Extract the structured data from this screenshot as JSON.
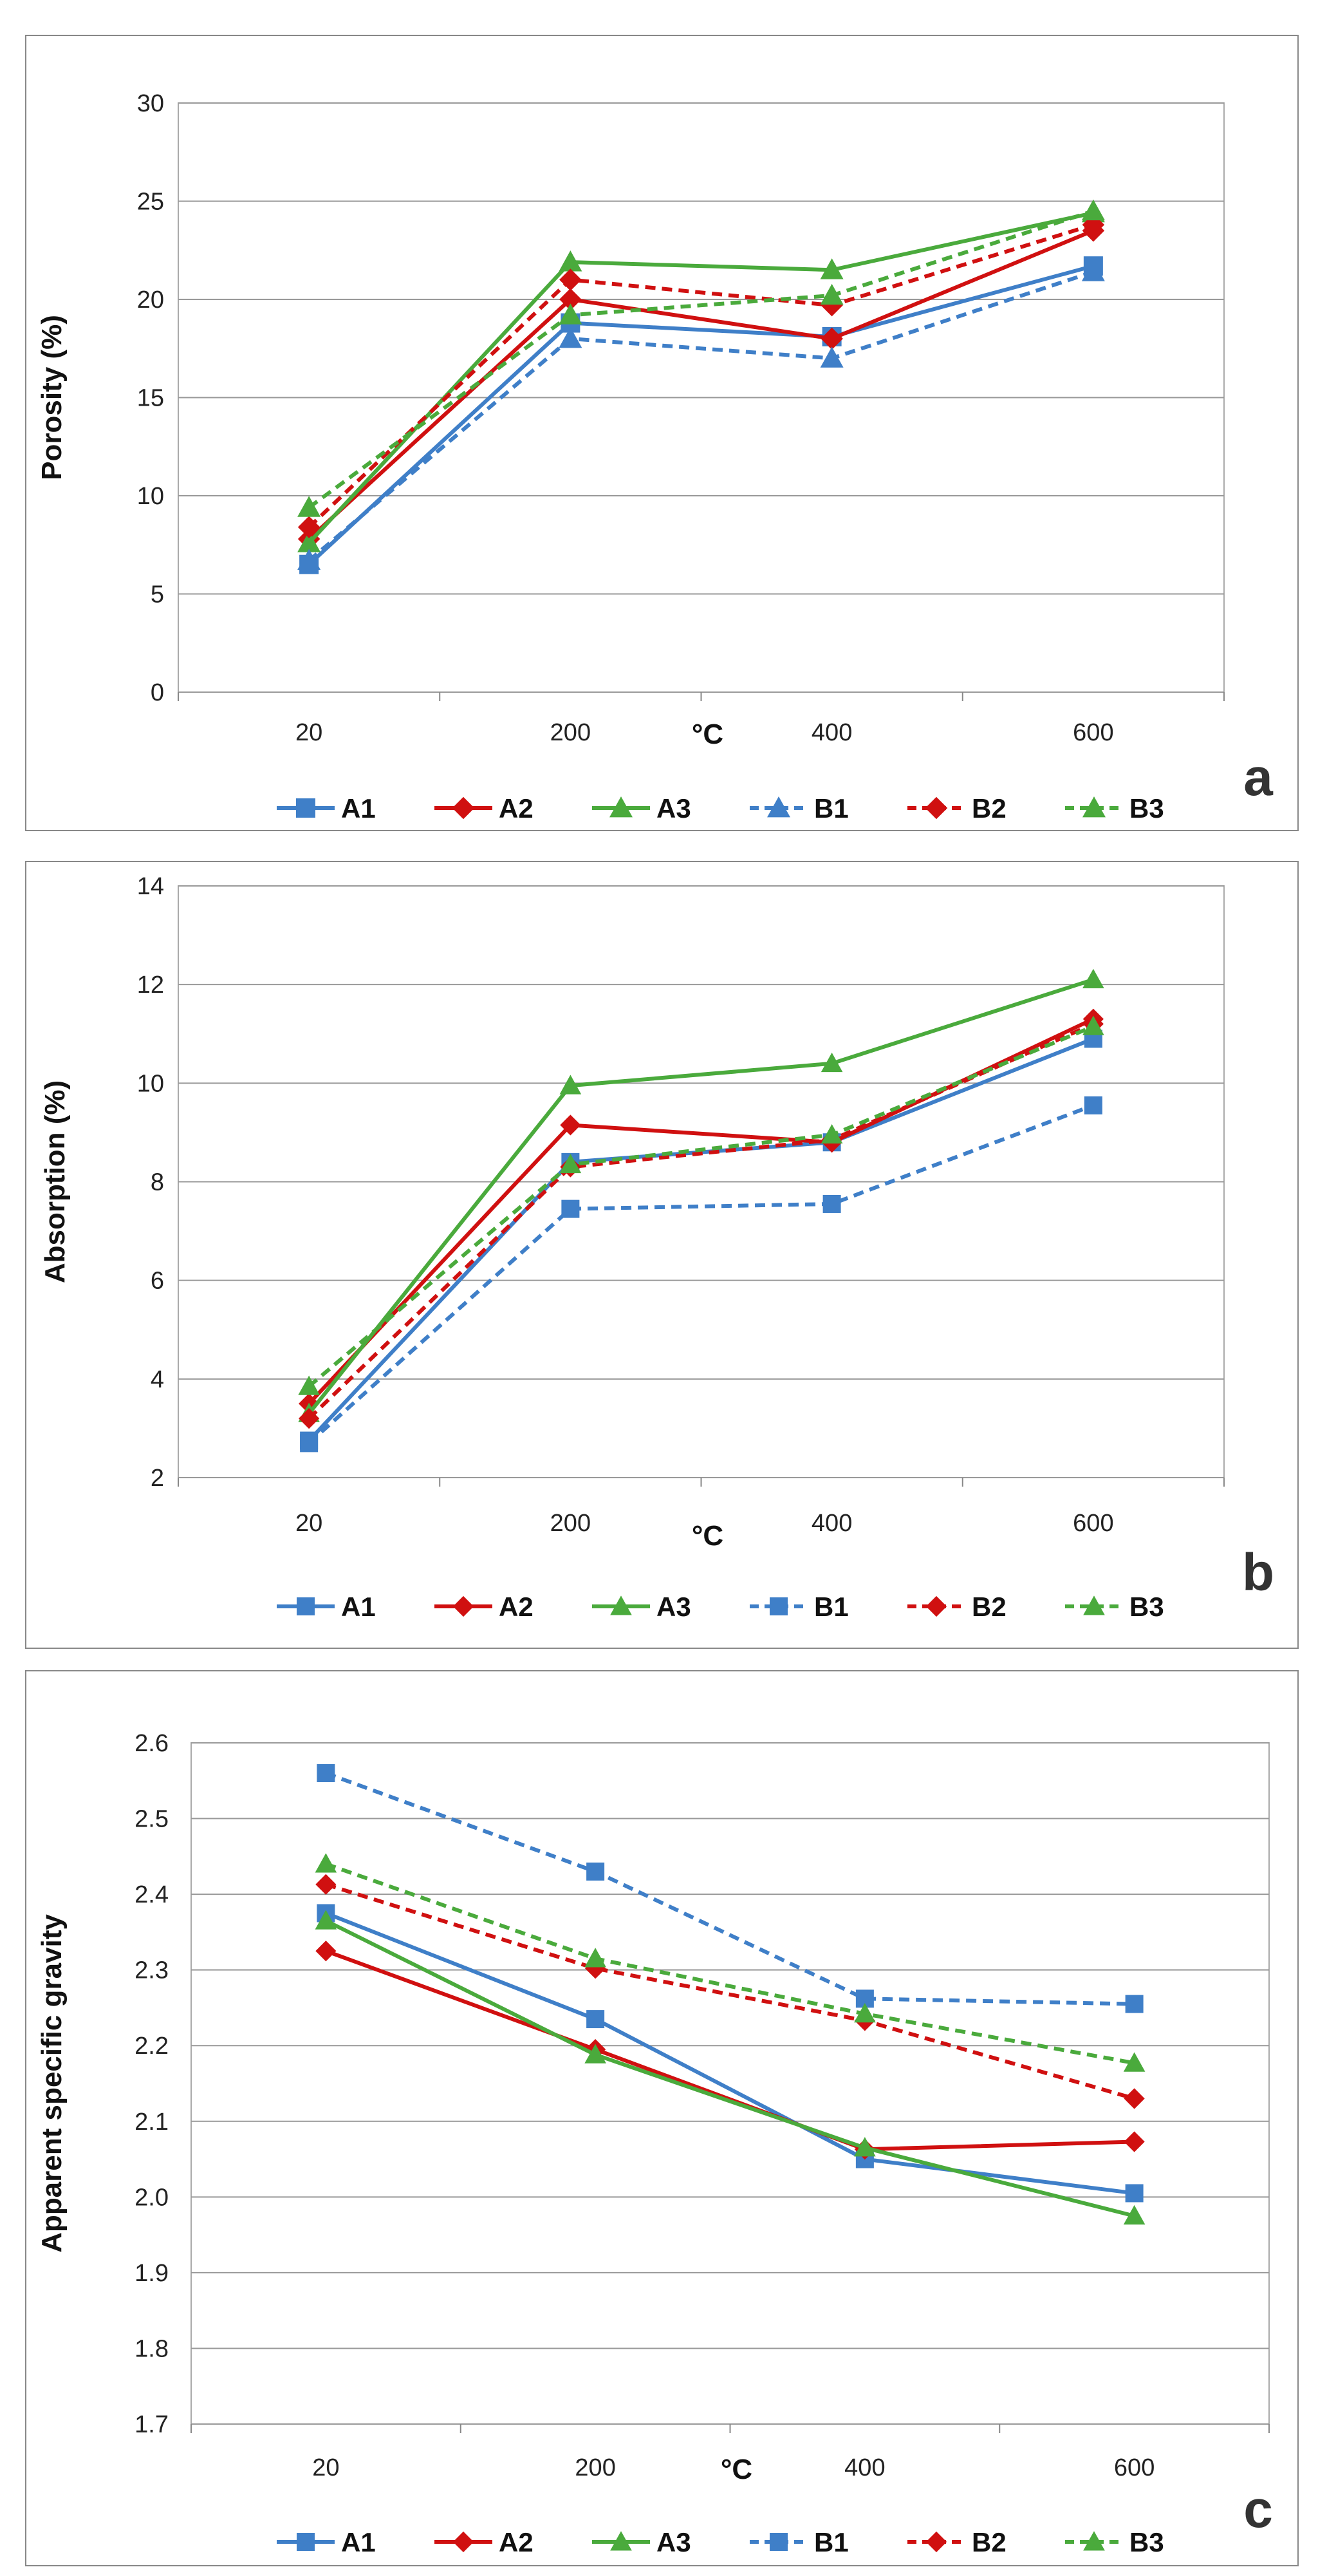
{
  "colors": {
    "A1": "#3f7fc8",
    "A2": "#d01010",
    "A3": "#4aaa3c",
    "B1": "#3f7fc8",
    "B2": "#d01010",
    "B3": "#4aaa3c",
    "grid": "#999999",
    "frame": "#888888"
  },
  "chart_data": [
    {
      "type": "line",
      "panel_letter": "a",
      "title": "",
      "xlabel": "°C",
      "ylabel": "Porosity (%)",
      "categories": [
        "20",
        "200",
        "400",
        "600"
      ],
      "ylim": [
        0,
        30
      ],
      "yticks": [
        "0",
        "5",
        "10",
        "15",
        "20",
        "25",
        "30"
      ],
      "grid": true,
      "legend_position": "bottom",
      "series": [
        {
          "name": "A1",
          "values": [
            6.5,
            18.8,
            18.1,
            21.7
          ],
          "style": "solid",
          "marker": "square"
        },
        {
          "name": "A2",
          "values": [
            7.8,
            20.0,
            18.0,
            23.5
          ],
          "style": "solid",
          "marker": "diamond"
        },
        {
          "name": "A3",
          "values": [
            7.6,
            21.9,
            21.5,
            24.4
          ],
          "style": "solid",
          "marker": "triangle"
        },
        {
          "name": "B1",
          "values": [
            6.7,
            18.0,
            17.0,
            21.4
          ],
          "style": "dashed",
          "marker": "triangle"
        },
        {
          "name": "B2",
          "values": [
            8.4,
            21.0,
            19.7,
            23.8
          ],
          "style": "dashed",
          "marker": "diamond"
        },
        {
          "name": "B3",
          "values": [
            9.4,
            19.2,
            20.2,
            24.5
          ],
          "style": "dashed",
          "marker": "triangle"
        }
      ]
    },
    {
      "type": "line",
      "panel_letter": "b",
      "title": "",
      "xlabel": "°C",
      "ylabel": "Absorption (%)",
      "categories": [
        "20",
        "200",
        "400",
        "600"
      ],
      "ylim": [
        2,
        14
      ],
      "yticks": [
        "2",
        "4",
        "6",
        "8",
        "10",
        "12",
        "14"
      ],
      "grid": true,
      "legend_position": "bottom",
      "series": [
        {
          "name": "A1",
          "values": [
            2.75,
            8.4,
            8.8,
            10.9
          ],
          "style": "solid",
          "marker": "square"
        },
        {
          "name": "A2",
          "values": [
            3.5,
            9.15,
            8.8,
            11.3
          ],
          "style": "solid",
          "marker": "diamond"
        },
        {
          "name": "A3",
          "values": [
            3.3,
            9.95,
            10.4,
            12.1
          ],
          "style": "solid",
          "marker": "triangle"
        },
        {
          "name": "B1",
          "values": [
            2.7,
            7.45,
            7.55,
            9.55
          ],
          "style": "dashed",
          "marker": "square"
        },
        {
          "name": "B2",
          "values": [
            3.2,
            8.3,
            8.85,
            11.2
          ],
          "style": "dashed",
          "marker": "diamond"
        },
        {
          "name": "B3",
          "values": [
            3.85,
            8.35,
            8.95,
            11.15
          ],
          "style": "dashed",
          "marker": "triangle"
        }
      ]
    },
    {
      "type": "line",
      "panel_letter": "c",
      "title": "",
      "xlabel": "°C",
      "ylabel": "Apparent specific gravity",
      "categories": [
        "20",
        "200",
        "400",
        "600"
      ],
      "ylim": [
        1.7,
        2.6
      ],
      "yticks": [
        "1.7",
        "1.8",
        "1.9",
        "2.0",
        "2.1",
        "2.2",
        "2.3",
        "2.4",
        "2.5",
        "2.6"
      ],
      "grid": true,
      "legend_position": "bottom",
      "series": [
        {
          "name": "A1",
          "values": [
            2.375,
            2.235,
            2.05,
            2.005
          ],
          "style": "solid",
          "marker": "square"
        },
        {
          "name": "A2",
          "values": [
            2.325,
            2.195,
            2.063,
            2.073
          ],
          "style": "solid",
          "marker": "diamond"
        },
        {
          "name": "A3",
          "values": [
            2.365,
            2.188,
            2.065,
            1.975
          ],
          "style": "solid",
          "marker": "triangle"
        },
        {
          "name": "B1",
          "values": [
            2.56,
            2.43,
            2.262,
            2.255
          ],
          "style": "dashed",
          "marker": "square"
        },
        {
          "name": "B2",
          "values": [
            2.413,
            2.302,
            2.233,
            2.13
          ],
          "style": "dashed",
          "marker": "diamond"
        },
        {
          "name": "B3",
          "values": [
            2.44,
            2.315,
            2.242,
            2.177
          ],
          "style": "dashed",
          "marker": "triangle"
        }
      ]
    }
  ]
}
